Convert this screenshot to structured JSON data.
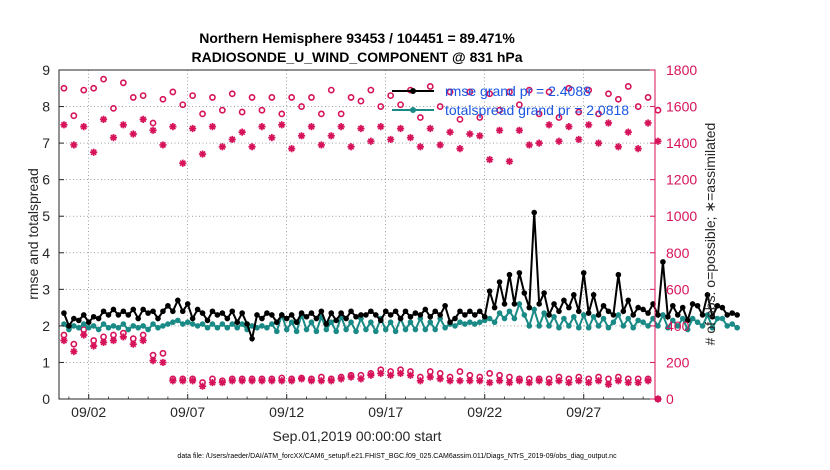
{
  "chart_data": {
    "type": "line",
    "title": "Northern Hemisphere 93453 / 104451 = 89.471%",
    "subtitle": "RADIOSONDE_U_WIND_COMPONENT @ 831 hPa",
    "xlabel": "Sep.01,2019 00:00:00 start",
    "ylabel_left": "rmse and totalspread",
    "ylabel_right": "# of obs: o=possible; ∗=assimilated",
    "footnote": "data file: /Users/raeder/DAI/ATM_forcXX/CAM6_setup/f.e21.FHIST_BGC.f09_025.CAM6assim.011/Diags_NTrS_2019-09/obs_diag_output.nc",
    "xlim": [
      0.5,
      30.6
    ],
    "ylim_left": [
      0,
      9
    ],
    "ylim_right": [
      0,
      1800
    ],
    "x_ticks": [
      2,
      7,
      12,
      17,
      22,
      27
    ],
    "x_tick_labels": [
      "09/02",
      "09/07",
      "09/12",
      "09/17",
      "09/22",
      "09/27"
    ],
    "y_left_ticks": [
      "0",
      "1",
      "2",
      "3",
      "4",
      "5",
      "6",
      "7",
      "8",
      "9"
    ],
    "y_right_ticks": [
      "0",
      "200",
      "400",
      "600",
      "800",
      "1000",
      "1200",
      "1400",
      "1600",
      "1800"
    ],
    "colors": {
      "rmse": "#000000",
      "spread": "#1a8a86",
      "obs": "#d6135a",
      "axis": "#262626"
    },
    "step_days": 0.25,
    "start_day": 0.75,
    "series": [
      {
        "name": "rmse",
        "legend": "rmse grand pr = 2.4088",
        "values": [
          2.35,
          2.0,
          2.2,
          2.15,
          2.3,
          2.1,
          2.25,
          2.2,
          2.4,
          2.3,
          2.45,
          2.3,
          2.4,
          2.3,
          2.45,
          2.2,
          2.45,
          2.35,
          2.4,
          2.2,
          2.4,
          2.55,
          2.4,
          2.7,
          2.4,
          2.6,
          2.2,
          2.45,
          2.35,
          2.15,
          2.4,
          2.3,
          2.35,
          2.2,
          2.4,
          2.1,
          2.35,
          2.05,
          1.65,
          2.3,
          2.2,
          2.35,
          2.3,
          2.1,
          2.3,
          2.2,
          2.3,
          2.1,
          2.35,
          2.25,
          2.35,
          2.2,
          2.4,
          2.05,
          2.35,
          2.15,
          2.35,
          2.2,
          2.4,
          2.25,
          2.3,
          2.3,
          2.4,
          2.3,
          2.15,
          2.4,
          2.3,
          2.4,
          2.2,
          2.4,
          2.25,
          2.35,
          2.3,
          2.45,
          2.25,
          2.4,
          2.3,
          2.55,
          2.1,
          2.2,
          2.4,
          2.3,
          2.4,
          2.3,
          2.4,
          2.25,
          2.95,
          2.5,
          3.2,
          2.6,
          3.4,
          2.6,
          3.45,
          2.9,
          2.5,
          5.1,
          2.6,
          2.9,
          2.3,
          2.6,
          2.4,
          2.7,
          2.5,
          2.85,
          2.4,
          3.45,
          2.35,
          2.85,
          2.3,
          2.55,
          2.4,
          2.3,
          3.4,
          2.4,
          2.7,
          2.3,
          2.5,
          2.45,
          2.35,
          2.6,
          2.3,
          3.75,
          2.25,
          2.55,
          2.3,
          2.5,
          2.15,
          2.6,
          2.55,
          2.3,
          2.85,
          2.25,
          2.55,
          2.5,
          2.3,
          2.35,
          2.3
        ]
      },
      {
        "name": "totalspread",
        "legend": "totalspread grand pr = 2.0818",
        "values": [
          2.05,
          1.9,
          2.0,
          1.95,
          2.05,
          1.95,
          2.0,
          1.9,
          2.05,
          1.95,
          2.0,
          1.95,
          2.05,
          1.9,
          2.0,
          1.95,
          2.0,
          1.9,
          2.05,
          1.95,
          2.0,
          2.05,
          2.1,
          2.15,
          2.05,
          2.1,
          2.05,
          2.0,
          2.05,
          1.95,
          2.05,
          1.95,
          2.05,
          1.95,
          2.05,
          1.95,
          2.05,
          1.9,
          2.0,
          1.95,
          2.0,
          1.95,
          2.05,
          1.85,
          2.3,
          1.9,
          2.1,
          1.85,
          2.3,
          1.9,
          2.1,
          1.85,
          2.25,
          1.9,
          2.1,
          1.85,
          2.25,
          1.9,
          2.1,
          1.85,
          2.2,
          1.9,
          2.1,
          1.85,
          2.2,
          1.9,
          2.1,
          1.85,
          2.2,
          1.9,
          2.1,
          1.9,
          2.2,
          1.9,
          2.1,
          1.9,
          2.2,
          1.95,
          2.05,
          2.0,
          2.1,
          2.05,
          2.1,
          2.05,
          2.1,
          2.15,
          2.2,
          2.1,
          2.35,
          2.2,
          2.4,
          2.2,
          2.6,
          2.3,
          2.0,
          2.45,
          2.0,
          2.35,
          2.0,
          2.25,
          1.95,
          2.2,
          2.0,
          2.25,
          1.95,
          2.3,
          1.95,
          2.25,
          2.0,
          2.2,
          1.95,
          2.1,
          2.3,
          2.0,
          2.2,
          1.95,
          2.15,
          2.1,
          2.0,
          2.2,
          2.0,
          2.3,
          1.95,
          2.15,
          2.0,
          2.2,
          1.9,
          2.2,
          2.1,
          2.0,
          2.3,
          1.95,
          2.2,
          2.2,
          2.0,
          2.05,
          1.95
        ]
      },
      {
        "name": "possible",
        "marker": "o",
        "x": [
          0.75,
          1.25,
          1.75,
          2.25,
          2.75,
          3.25,
          3.75,
          4.25,
          4.75,
          5.25,
          5.75,
          6.25,
          6.75,
          7.25,
          7.75,
          8.25,
          8.75,
          9.25,
          9.75,
          10.25,
          10.75,
          11.25,
          11.75,
          12.25,
          12.75,
          13.25,
          13.75,
          14.25,
          14.75,
          15.25,
          15.75,
          16.25,
          16.75,
          17.25,
          17.75,
          18.25,
          18.75,
          19.25,
          19.75,
          20.25,
          20.75,
          21.25,
          21.75,
          22.25,
          22.75,
          23.25,
          23.75,
          24.25,
          24.75,
          25.25,
          25.75,
          26.25,
          26.75,
          27.25,
          27.75,
          28.25,
          28.75,
          29.25,
          29.75,
          30.25,
          30.75
        ],
        "values": [
          1700,
          1550,
          1690,
          1700,
          1750,
          1590,
          1730,
          1650,
          1660,
          1510,
          1640,
          1680,
          1610,
          1660,
          1560,
          1650,
          1580,
          1670,
          1570,
          1650,
          1580,
          1650,
          1560,
          1650,
          1600,
          1650,
          1560,
          1690,
          1560,
          1650,
          1630,
          1690,
          1600,
          1660,
          1610,
          1690,
          1540,
          1710,
          1600,
          1680,
          1530,
          1680,
          1540,
          1670,
          1580,
          1680,
          1610,
          1690,
          1560,
          1680,
          1540,
          1700,
          1570,
          1690,
          1560,
          1670,
          1640,
          1710,
          1600,
          1650,
          1580
        ]
      },
      {
        "name": "assimilated",
        "marker": "*",
        "x": [
          0.75,
          1.25,
          1.75,
          2.25,
          2.75,
          3.25,
          3.75,
          4.25,
          4.75,
          5.25,
          5.75,
          6.25,
          6.75,
          7.25,
          7.75,
          8.25,
          8.75,
          9.25,
          9.75,
          10.25,
          10.75,
          11.25,
          11.75,
          12.25,
          12.75,
          13.25,
          13.75,
          14.25,
          14.75,
          15.25,
          15.75,
          16.25,
          16.75,
          17.25,
          17.75,
          18.25,
          18.75,
          19.25,
          19.75,
          20.25,
          20.75,
          21.25,
          21.75,
          22.25,
          22.75,
          23.25,
          23.75,
          24.25,
          24.75,
          25.25,
          25.75,
          26.25,
          26.75,
          27.25,
          27.75,
          28.25,
          28.75,
          29.25,
          29.75,
          30.25,
          30.75
        ],
        "values": [
          1500,
          1390,
          1490,
          1350,
          1530,
          1430,
          1500,
          1450,
          1530,
          1470,
          1390,
          1490,
          1290,
          1480,
          1340,
          1490,
          1380,
          1420,
          1460,
          1380,
          1490,
          1430,
          1500,
          1370,
          1440,
          1490,
          1390,
          1440,
          1490,
          1380,
          1480,
          1410,
          1490,
          1420,
          1480,
          1430,
          1380,
          1480,
          1390,
          1460,
          1370,
          1450,
          1440,
          1310,
          1470,
          1300,
          1470,
          1390,
          1400,
          1500,
          1410,
          1490,
          1420,
          1500,
          1400,
          1510,
          1380,
          1460,
          1370,
          1510,
          1410
        ]
      },
      {
        "name": "possible_low",
        "marker": "o",
        "x": [
          0.75,
          1.25,
          1.75,
          2.25,
          2.75,
          3.25,
          3.75,
          4.25,
          4.75,
          5.25,
          5.75,
          6.25,
          6.75,
          7.25,
          7.75,
          8.25,
          8.75,
          9.25,
          9.75,
          10.25,
          10.75,
          11.25,
          11.75,
          12.25,
          12.75,
          13.25,
          13.75,
          14.25,
          14.75,
          15.25,
          15.75,
          16.25,
          16.75,
          17.25,
          17.75,
          18.25,
          18.75,
          19.25,
          19.75,
          20.25,
          20.75,
          21.25,
          21.75,
          22.25,
          22.75,
          23.25,
          23.75,
          24.25,
          24.75,
          25.25,
          25.75,
          26.25,
          26.75,
          27.25,
          27.75,
          28.25,
          28.75,
          29.25,
          29.75,
          30.25,
          30.75
        ],
        "values": [
          350,
          300,
          380,
          320,
          340,
          350,
          360,
          330,
          350,
          240,
          250,
          110,
          110,
          110,
          90,
          110,
          100,
          110,
          110,
          110,
          110,
          110,
          115,
          110,
          115,
          110,
          120,
          110,
          120,
          130,
          130,
          140,
          160,
          150,
          160,
          150,
          120,
          150,
          140,
          120,
          150,
          130,
          120,
          140,
          130,
          120,
          110,
          110,
          110,
          110,
          120,
          110,
          120,
          110,
          120,
          110,
          120,
          110,
          110,
          110,
          0
        ]
      },
      {
        "name": "assimilated_low",
        "marker": "*",
        "x": [
          0.75,
          1.25,
          1.75,
          2.25,
          2.75,
          3.25,
          3.75,
          4.25,
          4.75,
          5.25,
          5.75,
          6.25,
          6.75,
          7.25,
          7.75,
          8.25,
          8.75,
          9.25,
          9.75,
          10.25,
          10.75,
          11.25,
          11.75,
          12.25,
          12.75,
          13.25,
          13.75,
          14.25,
          14.75,
          15.25,
          15.75,
          16.25,
          16.75,
          17.25,
          17.75,
          18.25,
          18.75,
          19.25,
          19.75,
          20.25,
          20.75,
          21.25,
          21.75,
          22.25,
          22.75,
          23.25,
          23.75,
          24.25,
          24.75,
          25.25,
          25.75,
          26.25,
          26.75,
          27.25,
          27.75,
          28.25,
          28.75,
          29.25,
          29.75,
          30.25,
          30.75
        ],
        "values": [
          320,
          260,
          350,
          290,
          310,
          320,
          340,
          300,
          320,
          210,
          200,
          100,
          100,
          100,
          70,
          90,
          90,
          100,
          100,
          100,
          100,
          100,
          100,
          100,
          110,
          100,
          100,
          100,
          110,
          120,
          110,
          130,
          140,
          130,
          140,
          130,
          100,
          120,
          110,
          100,
          100,
          100,
          100,
          90,
          100,
          90,
          100,
          90,
          100,
          90,
          100,
          90,
          100,
          90,
          100,
          80,
          100,
          90,
          90,
          100,
          0
        ]
      }
    ]
  }
}
